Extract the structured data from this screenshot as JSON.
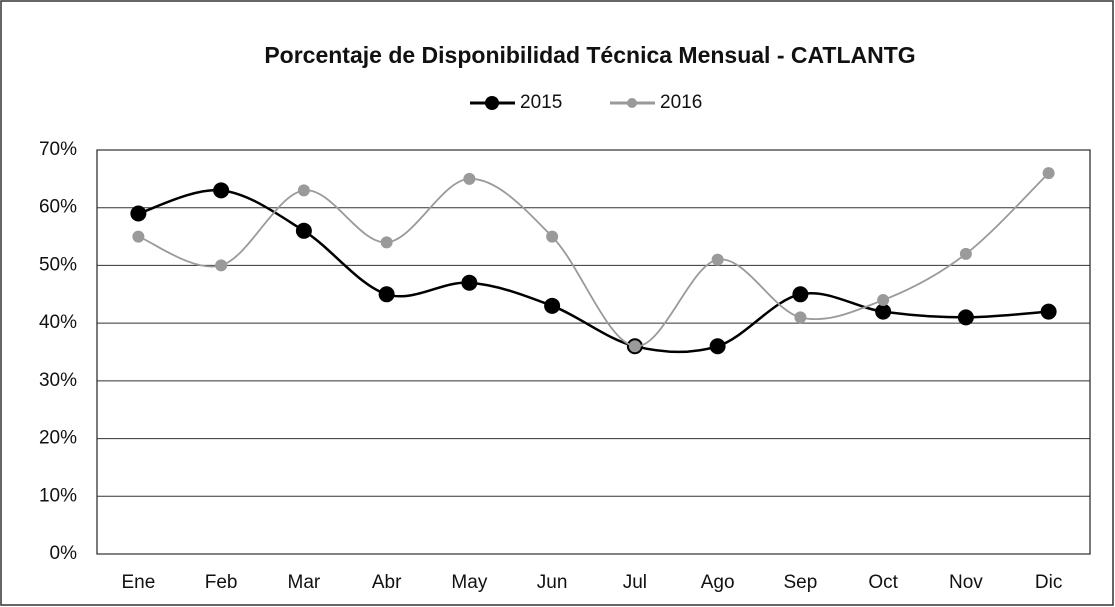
{
  "chart_data": {
    "type": "line",
    "title": "Porcentaje de Disponibilidad Técnica Mensual - CATLANTG",
    "categories": [
      "Ene",
      "Feb",
      "Mar",
      "Abr",
      "May",
      "Jun",
      "Jul",
      "Ago",
      "Sep",
      "Oct",
      "Nov",
      "Dic"
    ],
    "series": [
      {
        "name": "2015",
        "color": "#000000",
        "values": [
          59,
          63,
          56,
          45,
          47,
          43,
          36,
          36,
          45,
          42,
          41,
          42
        ]
      },
      {
        "name": "2016",
        "color": "#9a9a9a",
        "values": [
          55,
          50,
          63,
          54,
          65,
          55,
          36,
          51,
          41,
          44,
          52,
          66
        ]
      }
    ],
    "ylim": [
      0,
      70
    ],
    "yticks": [
      {
        "value": 0,
        "label": "0%"
      },
      {
        "value": 10,
        "label": "10%"
      },
      {
        "value": 20,
        "label": "20%"
      },
      {
        "value": 30,
        "label": "30%"
      },
      {
        "value": 40,
        "label": "40%"
      },
      {
        "value": 50,
        "label": "50%"
      },
      {
        "value": 60,
        "label": "60%"
      },
      {
        "value": 70,
        "label": "70%"
      }
    ],
    "grid": true,
    "smooth": true,
    "legend": "top"
  }
}
